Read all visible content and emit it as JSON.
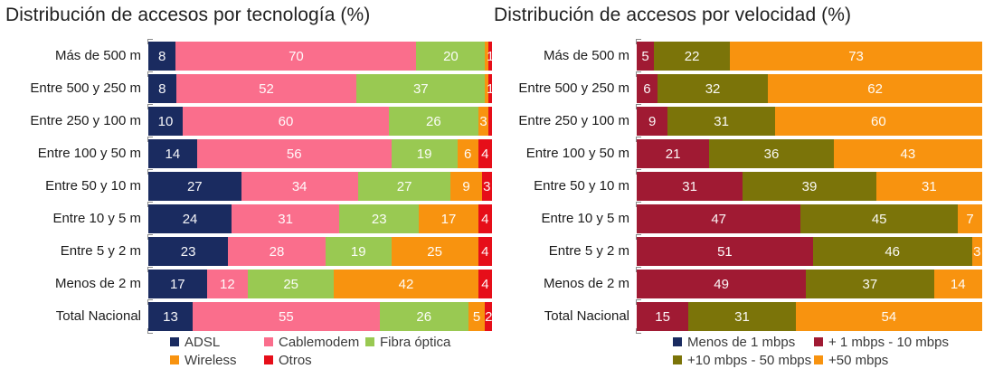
{
  "chart_data": [
    {
      "type": "bar",
      "orientation": "horizontal-stacked",
      "title": "Distribución de accesos por tecnología (%)",
      "xlim": [
        0,
        100
      ],
      "grid": false,
      "legend_position": "bottom",
      "categories": [
        "Más de 500 m",
        "Entre 500 y 250 m",
        "Entre 250 y 100 m",
        "Entre 100 y 50 m",
        "Entre 50 y 10 m",
        "Entre 10 y 5 m",
        "Entre 5 y 2 m",
        "Menos de 2 m",
        "Total Nacional"
      ],
      "series": [
        {
          "name": "ADSL",
          "color": "#1a2b60",
          "values": [
            8,
            8,
            10,
            14,
            27,
            24,
            23,
            17,
            13
          ]
        },
        {
          "name": "Cablemodem",
          "color": "#fa6e8c",
          "values": [
            70,
            52,
            60,
            56,
            34,
            31,
            28,
            12,
            55
          ]
        },
        {
          "name": "Fibra óptica",
          "color": "#99c952",
          "values": [
            20,
            37,
            26,
            19,
            27,
            23,
            19,
            25,
            26
          ]
        },
        {
          "name": "Wireless",
          "color": "#f8930f",
          "values": [
            1,
            1,
            3,
            6,
            9,
            17,
            25,
            42,
            5
          ]
        },
        {
          "name": "Otros",
          "color": "#e60e19",
          "values": [
            1,
            1,
            1,
            4,
            3,
            4,
            4,
            4,
            2
          ]
        }
      ],
      "shown_labels": [
        [
          "8",
          "70",
          "20",
          "",
          "1"
        ],
        [
          "8",
          "52",
          "37",
          "",
          "1"
        ],
        [
          "10",
          "60",
          "26",
          "3",
          ""
        ],
        [
          "14",
          "56",
          "19",
          "6",
          "4"
        ],
        [
          "27",
          "34",
          "27",
          "9",
          "3"
        ],
        [
          "24",
          "31",
          "23",
          "17",
          "4"
        ],
        [
          "23",
          "28",
          "19",
          "25",
          "4"
        ],
        [
          "17",
          "12",
          "25",
          "42",
          "4"
        ],
        [
          "13",
          "55",
          "26",
          "5",
          "2"
        ]
      ]
    },
    {
      "type": "bar",
      "orientation": "horizontal-stacked",
      "title": "Distribución de accesos por velocidad (%)",
      "xlim": [
        0,
        100
      ],
      "grid": false,
      "legend_position": "bottom",
      "categories": [
        "Más de 500 m",
        "Entre 500 y 250 m",
        "Entre 250 y 100 m",
        "Entre 100 y 50 m",
        "Entre 50 y 10 m",
        "Entre 10 y 5 m",
        "Entre 5 y 2 m",
        "Menos de 2 m",
        "Total Nacional"
      ],
      "series": [
        {
          "name": "Menos de 1 mbps",
          "color": "#1a2b60",
          "values": [
            0,
            0,
            0,
            0,
            0,
            0,
            0,
            0,
            0
          ]
        },
        {
          "name": "+ 1 mbps - 10 mbps",
          "color": "#a01a33",
          "values": [
            5,
            6,
            9,
            21,
            31,
            47,
            51,
            49,
            15
          ]
        },
        {
          "name": "+10 mbps - 50 mbps",
          "color": "#7b7409",
          "values": [
            22,
            32,
            31,
            36,
            39,
            45,
            46,
            37,
            31
          ]
        },
        {
          "name": "+50 mbps",
          "color": "#f8930f",
          "values": [
            73,
            62,
            60,
            43,
            31,
            7,
            3,
            14,
            54
          ]
        }
      ],
      "shown_labels": [
        [
          "",
          "5",
          "22",
          "73"
        ],
        [
          "",
          "6",
          "32",
          "62"
        ],
        [
          "",
          "9",
          "31",
          "60"
        ],
        [
          "",
          "21",
          "36",
          "43"
        ],
        [
          "",
          "31",
          "39",
          "31"
        ],
        [
          "",
          "47",
          "45",
          "7"
        ],
        [
          "",
          "51",
          "46",
          "3"
        ],
        [
          "",
          "49",
          "37",
          "14"
        ],
        [
          "",
          "15",
          "31",
          "54"
        ]
      ]
    }
  ]
}
